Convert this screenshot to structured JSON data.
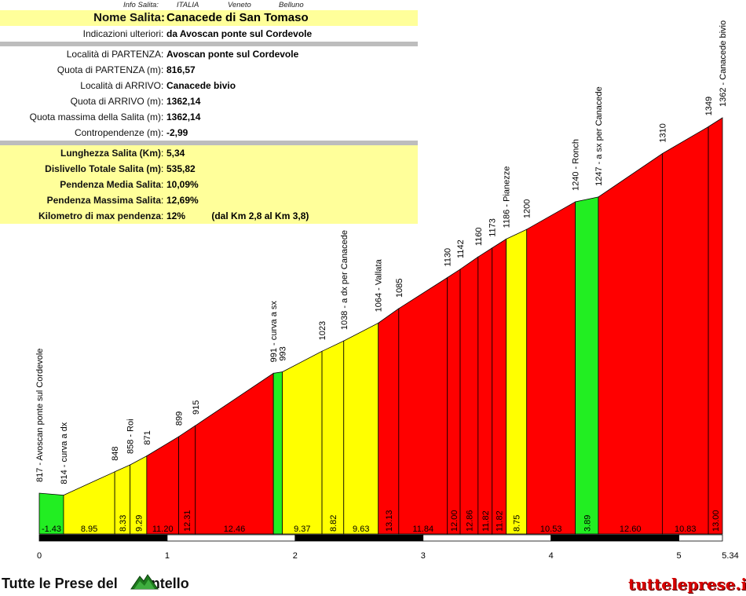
{
  "header": {
    "info_label": "Info Salita:",
    "country": "ITALIA",
    "region": "Veneto",
    "province": "Belluno"
  },
  "info_rows": [
    {
      "label": "Nome Salita",
      "value": "Canacede di San Tomaso",
      "style": "title"
    },
    {
      "label": "Indicazioni ulteriori",
      "value": "da Avoscan ponte sul Cordevole",
      "style": "white"
    },
    {
      "sep": true
    },
    {
      "label": "Località di PARTENZA",
      "value": "Avoscan ponte sul Cordevole",
      "style": "white"
    },
    {
      "label": "Quota di PARTENZA (m)",
      "value": "816,57",
      "style": "white"
    },
    {
      "label": "Località di ARRIVO",
      "value": "Canacede bivio",
      "style": "white"
    },
    {
      "label": "Quota di ARRIVO (m)",
      "value": "1362,14",
      "style": "white"
    },
    {
      "label": "Quota massima della Salita (m)",
      "value": "1362,14",
      "style": "white"
    },
    {
      "label": "Contropendenze (m)",
      "value": "-2,99",
      "style": "white"
    },
    {
      "sep": true
    },
    {
      "label": "Lunghezza Salita (Km)",
      "value": "5,34",
      "style": "yellow"
    },
    {
      "label": "Dislivello Totale Salita (m)",
      "value": "535,82",
      "style": "yellow"
    },
    {
      "label": "Pendenza Media Salita",
      "value": "10,09%",
      "style": "yellow"
    },
    {
      "label": "Pendenza Massima Salita",
      "value": "12,69%",
      "style": "yellow"
    },
    {
      "label": "Kilometro di max pendenza",
      "value": "12%          (dal Km 2,8 al Km 3,8)",
      "style": "yellow"
    }
  ],
  "colors": {
    "green": "#22ee22",
    "yellow": "#ffff00",
    "red": "#ff0000",
    "info_yellow": "#ffff9a",
    "separator": "#bdbdbd",
    "brand_red": "#d80000"
  },
  "chart_data": {
    "type": "area",
    "xlabel": "",
    "ylabel": "",
    "xlim": [
      0,
      5.34
    ],
    "x_ticks": [
      "0",
      "1",
      "2",
      "3",
      "4",
      "5",
      "5.34"
    ],
    "x_tick_values": [
      0,
      1,
      2,
      3,
      4,
      5,
      5.34
    ],
    "segments": [
      {
        "x0": 0.0,
        "x1": 0.19,
        "y0": 817,
        "y1": 814,
        "grade": "-1.43",
        "color": "green"
      },
      {
        "x0": 0.19,
        "x1": 0.59,
        "y0": 814,
        "y1": 848,
        "grade": "8.95",
        "color": "yellow"
      },
      {
        "x0": 0.59,
        "x1": 0.71,
        "y0": 848,
        "y1": 858,
        "grade": "8.33",
        "color": "yellow"
      },
      {
        "x0": 0.71,
        "x1": 0.84,
        "y0": 858,
        "y1": 871,
        "grade": "9.29",
        "color": "yellow"
      },
      {
        "x0": 0.84,
        "x1": 1.09,
        "y0": 871,
        "y1": 899,
        "grade": "11.20",
        "color": "red"
      },
      {
        "x0": 1.09,
        "x1": 1.22,
        "y0": 899,
        "y1": 915,
        "grade": "12.31",
        "color": "red"
      },
      {
        "x0": 1.22,
        "x1": 1.83,
        "y0": 915,
        "y1": 991,
        "grade": "12.46",
        "color": "red"
      },
      {
        "x0": 1.83,
        "x1": 1.9,
        "y0": 991,
        "y1": 993,
        "grade": "",
        "color": "green"
      },
      {
        "x0": 1.9,
        "x1": 2.21,
        "y0": 993,
        "y1": 1023,
        "grade": "9.37",
        "color": "yellow"
      },
      {
        "x0": 2.21,
        "x1": 2.38,
        "y0": 1023,
        "y1": 1038,
        "grade": "8.82",
        "color": "yellow"
      },
      {
        "x0": 2.38,
        "x1": 2.65,
        "y0": 1038,
        "y1": 1064,
        "grade": "9.63",
        "color": "yellow"
      },
      {
        "x0": 2.65,
        "x1": 2.81,
        "y0": 1064,
        "y1": 1085,
        "grade": "13.13",
        "color": "red"
      },
      {
        "x0": 2.81,
        "x1": 3.19,
        "y0": 1085,
        "y1": 1130,
        "grade": "11.84",
        "color": "red"
      },
      {
        "x0": 3.19,
        "x1": 3.29,
        "y0": 1130,
        "y1": 1142,
        "grade": "12.00",
        "color": "red"
      },
      {
        "x0": 3.29,
        "x1": 3.43,
        "y0": 1142,
        "y1": 1160,
        "grade": "12.86",
        "color": "red"
      },
      {
        "x0": 3.43,
        "x1": 3.54,
        "y0": 1160,
        "y1": 1173,
        "grade": "11.82",
        "color": "red"
      },
      {
        "x0": 3.54,
        "x1": 3.65,
        "y0": 1173,
        "y1": 1186,
        "grade": "11.82",
        "color": "red"
      },
      {
        "x0": 3.65,
        "x1": 3.81,
        "y0": 1186,
        "y1": 1200,
        "grade": "8.75",
        "color": "yellow"
      },
      {
        "x0": 3.81,
        "x1": 4.19,
        "y0": 1200,
        "y1": 1240,
        "grade": "10.53",
        "color": "red"
      },
      {
        "x0": 4.19,
        "x1": 4.37,
        "y0": 1240,
        "y1": 1247,
        "grade": "3.89",
        "color": "green"
      },
      {
        "x0": 4.37,
        "x1": 4.87,
        "y0": 1247,
        "y1": 1310,
        "grade": "12.60",
        "color": "red"
      },
      {
        "x0": 4.87,
        "x1": 5.23,
        "y0": 1310,
        "y1": 1349,
        "grade": "10.83",
        "color": "red"
      },
      {
        "x0": 5.23,
        "x1": 5.34,
        "y0": 1349,
        "y1": 1362,
        "grade": "13.00",
        "color": "red"
      }
    ],
    "point_labels": [
      {
        "x": 0.0,
        "y": 817,
        "text": "817 - Avoscan ponte sul Cordevole"
      },
      {
        "x": 0.19,
        "y": 814,
        "text": "814 - curva a dx"
      },
      {
        "x": 0.59,
        "y": 848,
        "text": "848"
      },
      {
        "x": 0.71,
        "y": 858,
        "text": "858 - Roi"
      },
      {
        "x": 0.84,
        "y": 871,
        "text": "871"
      },
      {
        "x": 1.09,
        "y": 899,
        "text": "899"
      },
      {
        "x": 1.22,
        "y": 915,
        "text": "915"
      },
      {
        "x": 1.83,
        "y": 991,
        "text": "991 - curva a sx"
      },
      {
        "x": 1.9,
        "y": 993,
        "text": "993"
      },
      {
        "x": 2.21,
        "y": 1023,
        "text": "1023"
      },
      {
        "x": 2.38,
        "y": 1038,
        "text": "1038 - a dx per Canacede"
      },
      {
        "x": 2.65,
        "y": 1064,
        "text": "1064 - Vallata"
      },
      {
        "x": 2.81,
        "y": 1085,
        "text": "1085"
      },
      {
        "x": 3.19,
        "y": 1130,
        "text": "1130"
      },
      {
        "x": 3.29,
        "y": 1142,
        "text": "1142"
      },
      {
        "x": 3.43,
        "y": 1160,
        "text": "1160"
      },
      {
        "x": 3.54,
        "y": 1173,
        "text": "1173"
      },
      {
        "x": 3.65,
        "y": 1186,
        "text": "1186 - Pianezze"
      },
      {
        "x": 3.81,
        "y": 1200,
        "text": "1200"
      },
      {
        "x": 4.19,
        "y": 1240,
        "text": "1240 - Ronch"
      },
      {
        "x": 4.37,
        "y": 1247,
        "text": "1247 - a sx per Canacede"
      },
      {
        "x": 4.87,
        "y": 1310,
        "text": "1310"
      },
      {
        "x": 5.23,
        "y": 1349,
        "text": "1349"
      },
      {
        "x": 5.34,
        "y": 1362,
        "text": "1362 - Canacede bivio"
      }
    ]
  },
  "footer": {
    "left_text_start": "Tutte le Prese del",
    "left_text_end": "ontello",
    "right_text": "tutteleprese.it"
  }
}
